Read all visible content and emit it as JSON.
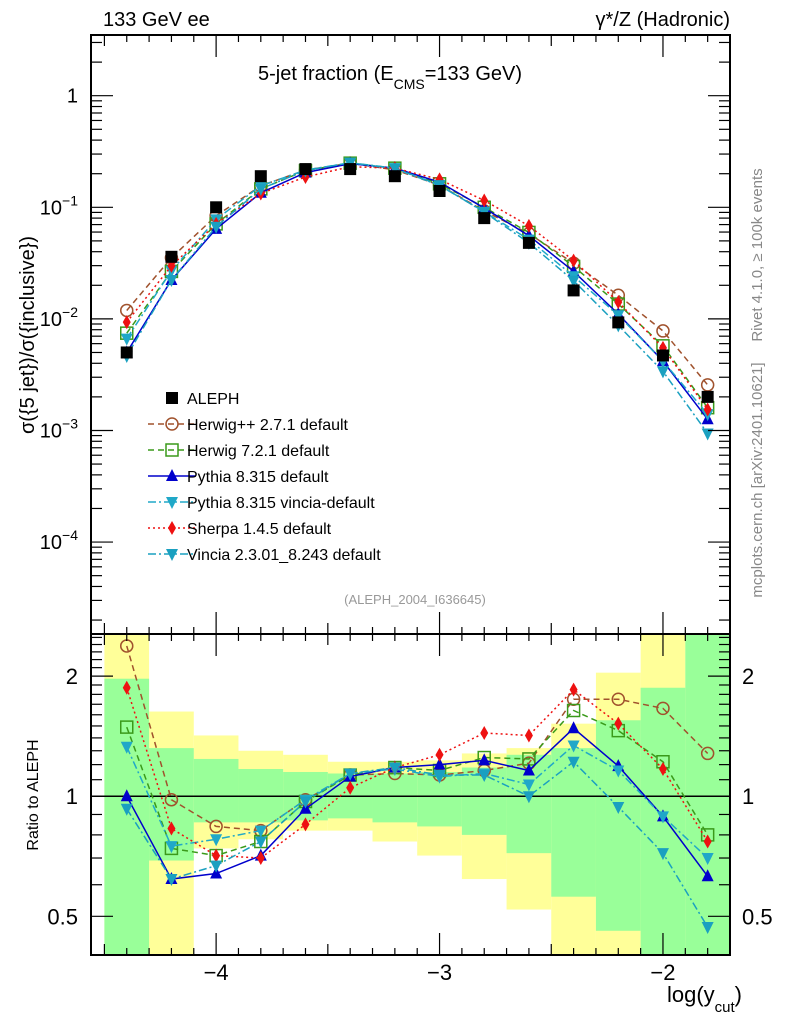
{
  "header": {
    "left_label": "133 GeV ee",
    "right_label": "γ*/Z (Hadronic)"
  },
  "side_labels": {
    "rivet": "Rivet 4.1.0, ≥ 100k events",
    "mcplots": "mcplots.cern.ch [arXiv:2401.10621]"
  },
  "analysis_id": "(ALEPH_2004_I636645)",
  "chart_data": [
    {
      "type": "line",
      "panel": "main",
      "title": "5-jet fraction (E",
      "title_sub": "CMS",
      "title_tail": "=133 GeV)",
      "ylabel": "σ({5 jet})/σ({inclusive})",
      "yscale": "log",
      "ylim": [
        1.5e-05,
        3.5
      ],
      "xlim": [
        -4.56,
        -1.7
      ],
      "y_ticks": [
        {
          "value": 1,
          "label": "1",
          "sup": ""
        },
        {
          "value": 0.1,
          "label": "10",
          "sup": "−1"
        },
        {
          "value": 0.01,
          "label": "10",
          "sup": "−2"
        },
        {
          "value": 0.001,
          "label": "10",
          "sup": "−3"
        },
        {
          "value": 0.0001,
          "label": "10",
          "sup": "−4"
        }
      ],
      "x": [
        -4.4,
        -4.2,
        -4.0,
        -3.8,
        -3.6,
        -3.4,
        -3.2,
        -3.0,
        -2.8,
        -2.6,
        -2.4,
        -2.2,
        -2.0,
        -1.8
      ],
      "data": {
        "name": "ALEPH",
        "values": [
          0.005,
          0.036,
          0.1,
          0.19,
          0.22,
          0.22,
          0.19,
          0.14,
          0.08,
          0.048,
          0.018,
          0.0093,
          0.0047,
          0.002
        ]
      },
      "legend": {
        "placement": "middle-left"
      }
    },
    {
      "type": "line",
      "panel": "ratio",
      "ylabel": "Ratio to ALEPH",
      "xlabel": "log(y",
      "xlabel_sub": "cut",
      "xlabel_tail": ")",
      "yscale": "log2",
      "ylim": [
        0.4,
        2.55
      ],
      "y_ticks": [
        {
          "value": 2,
          "label": "2"
        },
        {
          "value": 1,
          "label": "1"
        },
        {
          "value": 0.5,
          "label": "0.5"
        }
      ],
      "x_ticks": [
        {
          "value": -4,
          "label": "−4"
        },
        {
          "value": -3,
          "label": "−3"
        },
        {
          "value": -2,
          "label": "−2"
        }
      ],
      "x": [
        -4.4,
        -4.2,
        -4.0,
        -3.8,
        -3.6,
        -3.4,
        -3.2,
        -3.0,
        -2.8,
        -2.6,
        -2.4,
        -2.2,
        -2.0,
        -1.8
      ],
      "bands": {
        "yellow": [
          [
            0.4,
            2.55
          ],
          [
            0.4,
            1.63
          ],
          [
            0.74,
            1.42
          ],
          [
            0.78,
            1.3
          ],
          [
            0.82,
            1.27
          ],
          [
            0.82,
            1.22
          ],
          [
            0.77,
            1.22
          ],
          [
            0.71,
            1.23
          ],
          [
            0.62,
            1.28
          ],
          [
            0.52,
            1.32
          ],
          [
            0.4,
            1.52
          ],
          [
            0.4,
            2.04
          ],
          [
            0.4,
            2.55
          ],
          [
            0.4,
            2.55
          ]
        ],
        "green": [
          [
            0.4,
            1.97
          ],
          [
            0.69,
            1.32
          ],
          [
            0.86,
            1.24
          ],
          [
            0.86,
            1.17
          ],
          [
            0.87,
            1.15
          ],
          [
            0.88,
            1.14
          ],
          [
            0.86,
            1.14
          ],
          [
            0.84,
            1.15
          ],
          [
            0.8,
            1.18
          ],
          [
            0.72,
            1.27
          ],
          [
            0.56,
            1.32
          ],
          [
            0.46,
            1.55
          ],
          [
            0.4,
            1.87
          ],
          [
            0.4,
            2.55
          ]
        ]
      },
      "series": [
        {
          "name": "Herwig++ 2.7.1 default",
          "color": "#a0522d",
          "dash": "6,4",
          "marker": "circle-open",
          "values": [
            2.38,
            0.98,
            0.84,
            0.82,
            0.98,
            1.13,
            1.14,
            1.13,
            1.16,
            1.21,
            1.75,
            1.75,
            1.66,
            1.28
          ]
        },
        {
          "name": "Herwig 7.2.1 default",
          "color": "#3a9a1a",
          "dash": "6,4",
          "marker": "square-open",
          "values": [
            1.49,
            0.74,
            0.71,
            0.77,
            0.97,
            1.13,
            1.18,
            1.16,
            1.25,
            1.24,
            1.64,
            1.46,
            1.22,
            0.8
          ]
        },
        {
          "name": "Pythia 8.315 default",
          "color": "#0000cc",
          "dash": "",
          "marker": "triangle-up",
          "values": [
            1.0,
            0.62,
            0.64,
            0.71,
            0.93,
            1.12,
            1.18,
            1.2,
            1.23,
            1.16,
            1.48,
            1.19,
            0.89,
            0.63
          ]
        },
        {
          "name": "Pythia 8.315 vincia-default",
          "color": "#20a8c8",
          "dash": "8,3,2,3",
          "marker": "triangle-down",
          "values": [
            1.33,
            0.75,
            0.78,
            0.82,
            0.98,
            1.14,
            1.17,
            1.12,
            1.14,
            1.07,
            1.34,
            1.16,
            0.89,
            0.7
          ]
        },
        {
          "name": "Sherpa 1.4.5 default",
          "color": "#ee1111",
          "dash": "2,3",
          "marker": "diamond",
          "values": [
            1.87,
            0.83,
            0.71,
            0.7,
            0.85,
            1.05,
            1.18,
            1.27,
            1.44,
            1.42,
            1.85,
            1.52,
            1.17,
            0.77
          ]
        },
        {
          "name": "Vincia 2.3.01_8.243 default",
          "color": "#1aa0c0",
          "dash": "8,3,2,3",
          "marker": "triangle-down",
          "values": [
            0.93,
            0.62,
            0.67,
            0.77,
            0.97,
            1.14,
            1.18,
            1.13,
            1.13,
            1.0,
            1.22,
            0.94,
            0.72,
            0.47
          ]
        }
      ]
    }
  ]
}
